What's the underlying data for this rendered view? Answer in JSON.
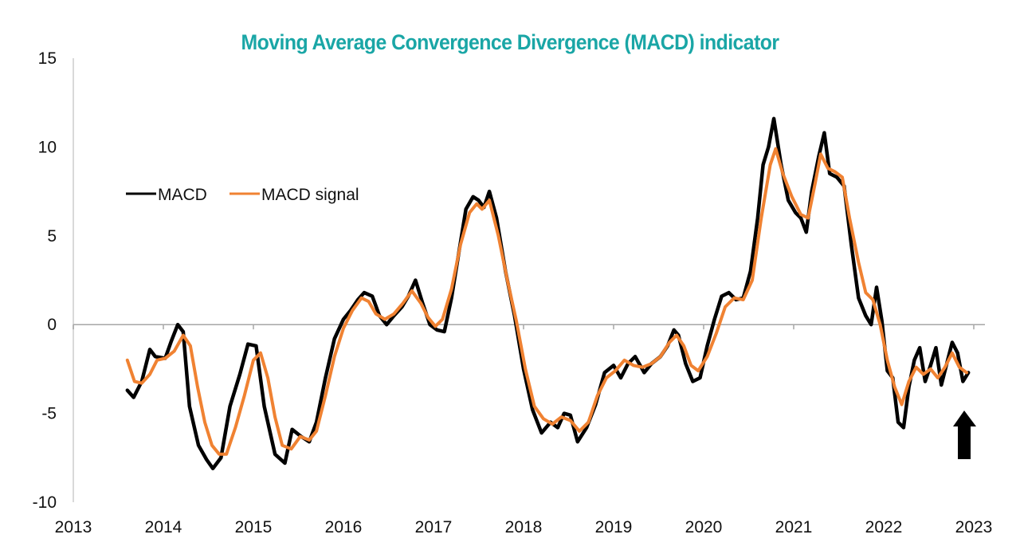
{
  "chart_data": {
    "type": "line",
    "title": "Moving Average Convergence Divergence (MACD) indicator",
    "xlabel": "",
    "ylabel": "",
    "xlim": [
      2013,
      2023
    ],
    "ylim": [
      -10,
      15
    ],
    "x_ticks": [
      "2013",
      "2014",
      "2015",
      "2016",
      "2017",
      "2018",
      "2019",
      "2020",
      "2021",
      "2022",
      "2023"
    ],
    "y_ticks": [
      "15",
      "10",
      "5",
      "0",
      "-5",
      "-10"
    ],
    "y_tick_values": [
      15,
      10,
      5,
      0,
      -5,
      -10
    ],
    "x_tick_values": [
      2013,
      2014,
      2015,
      2016,
      2017,
      2018,
      2019,
      2020,
      2021,
      2022,
      2023
    ],
    "grid": false,
    "legend": {
      "placement": "top-left",
      "entries": [
        "MACD",
        "MACD signal"
      ]
    },
    "annotation": {
      "type": "up-arrow",
      "x": 2022.92,
      "description": "arrow pointing up under latest values"
    },
    "series": [
      {
        "name": "MACD",
        "color": "#000000",
        "x": [
          2013.6,
          2013.67,
          2013.76,
          2013.85,
          2013.91,
          2014.02,
          2014.09,
          2014.16,
          2014.22,
          2014.29,
          2014.39,
          2014.48,
          2014.55,
          2014.64,
          2014.74,
          2014.85,
          2014.94,
          2015.03,
          2015.12,
          2015.24,
          2015.35,
          2015.43,
          2015.53,
          2015.62,
          2015.7,
          2015.8,
          2015.9,
          2016.0,
          2016.08,
          2016.16,
          2016.23,
          2016.32,
          2016.4,
          2016.48,
          2016.56,
          2016.65,
          2016.72,
          2016.8,
          2016.88,
          2016.96,
          2017.04,
          2017.12,
          2017.2,
          2017.28,
          2017.36,
          2017.44,
          2017.5,
          2017.56,
          2017.62,
          2017.7,
          2017.8,
          2017.9,
          2018.0,
          2018.1,
          2018.2,
          2018.3,
          2018.38,
          2018.45,
          2018.52,
          2018.6,
          2018.7,
          2018.8,
          2018.9,
          2019.0,
          2019.08,
          2019.16,
          2019.24,
          2019.34,
          2019.42,
          2019.52,
          2019.6,
          2019.67,
          2019.72,
          2019.8,
          2019.88,
          2019.96,
          2020.04,
          2020.12,
          2020.2,
          2020.28,
          2020.36,
          2020.44,
          2020.52,
          2020.6,
          2020.66,
          2020.72,
          2020.78,
          2020.86,
          2020.94,
          2021.02,
          2021.08,
          2021.14,
          2021.2,
          2021.28,
          2021.34,
          2021.4,
          2021.48,
          2021.56,
          2021.64,
          2021.72,
          2021.8,
          2021.86,
          2021.92,
          2021.98,
          2022.04,
          2022.1,
          2022.16,
          2022.22,
          2022.28,
          2022.34,
          2022.4,
          2022.46,
          2022.52,
          2022.58,
          2022.64,
          2022.7,
          2022.76,
          2022.82,
          2022.88,
          2022.94
        ],
        "values": [
          -3.7,
          -4.1,
          -3.2,
          -1.4,
          -1.8,
          -1.9,
          -0.9,
          0.0,
          -0.4,
          -4.6,
          -6.8,
          -7.6,
          -8.1,
          -7.5,
          -4.6,
          -2.8,
          -1.1,
          -1.2,
          -4.6,
          -7.3,
          -7.8,
          -5.9,
          -6.3,
          -6.6,
          -5.5,
          -3.0,
          -0.8,
          0.3,
          0.8,
          1.4,
          1.8,
          1.6,
          0.5,
          0.0,
          0.5,
          1.0,
          1.6,
          2.5,
          1.2,
          0.0,
          -0.3,
          -0.4,
          1.5,
          4.0,
          6.5,
          7.2,
          7.0,
          6.6,
          7.5,
          6.0,
          3.0,
          0.5,
          -2.5,
          -4.8,
          -6.1,
          -5.5,
          -5.8,
          -5.0,
          -5.1,
          -6.6,
          -5.8,
          -4.5,
          -2.7,
          -2.3,
          -3.0,
          -2.2,
          -1.8,
          -2.7,
          -2.2,
          -1.8,
          -1.2,
          -0.3,
          -0.6,
          -2.2,
          -3.2,
          -3.0,
          -1.2,
          0.3,
          1.6,
          1.8,
          1.4,
          1.5,
          3.0,
          6.0,
          9.0,
          10.0,
          11.6,
          9.0,
          7.0,
          6.3,
          6.0,
          5.2,
          7.5,
          9.5,
          10.8,
          8.5,
          8.3,
          7.8,
          4.5,
          1.5,
          0.5,
          0.0,
          2.1,
          0.2,
          -2.6,
          -3.0,
          -5.5,
          -5.8,
          -3.5,
          -2.0,
          -1.3,
          -3.2,
          -2.3,
          -1.3,
          -3.4,
          -2.2,
          -1.0,
          -1.6,
          -3.2,
          -2.7
        ],
        "note": "MACD line"
      },
      {
        "name": "MACD signal",
        "color": "#F08232",
        "x": [
          2013.6,
          2013.68,
          2013.76,
          2013.85,
          2013.93,
          2014.02,
          2014.12,
          2014.22,
          2014.3,
          2014.38,
          2014.46,
          2014.54,
          2014.62,
          2014.7,
          2014.8,
          2014.9,
          2015.0,
          2015.08,
          2015.16,
          2015.24,
          2015.32,
          2015.42,
          2015.52,
          2015.62,
          2015.7,
          2015.8,
          2015.9,
          2016.0,
          2016.1,
          2016.2,
          2016.28,
          2016.36,
          2016.46,
          2016.56,
          2016.66,
          2016.76,
          2016.86,
          2016.94,
          2017.02,
          2017.1,
          2017.2,
          2017.3,
          2017.4,
          2017.48,
          2017.54,
          2017.62,
          2017.72,
          2017.82,
          2017.92,
          2018.02,
          2018.12,
          2018.22,
          2018.32,
          2018.42,
          2018.52,
          2018.62,
          2018.72,
          2018.82,
          2018.92,
          2019.02,
          2019.12,
          2019.22,
          2019.32,
          2019.42,
          2019.52,
          2019.62,
          2019.7,
          2019.78,
          2019.86,
          2019.94,
          2020.04,
          2020.14,
          2020.24,
          2020.34,
          2020.44,
          2020.54,
          2020.64,
          2020.74,
          2020.8,
          2020.88,
          2020.98,
          2021.08,
          2021.16,
          2021.24,
          2021.3,
          2021.38,
          2021.46,
          2021.54,
          2021.62,
          2021.72,
          2021.8,
          2021.88,
          2021.96,
          2022.04,
          2022.12,
          2022.2,
          2022.28,
          2022.36,
          2022.44,
          2022.52,
          2022.6,
          2022.68,
          2022.76,
          2022.84,
          2022.92
        ],
        "values": [
          -2.0,
          -3.2,
          -3.3,
          -2.8,
          -2.0,
          -1.9,
          -1.5,
          -0.6,
          -1.2,
          -3.5,
          -5.5,
          -6.8,
          -7.3,
          -7.3,
          -5.8,
          -4.0,
          -2.0,
          -1.6,
          -3.0,
          -5.2,
          -6.8,
          -7.0,
          -6.3,
          -6.5,
          -6.0,
          -4.0,
          -1.8,
          -0.2,
          0.8,
          1.5,
          1.3,
          0.6,
          0.3,
          0.6,
          1.2,
          1.9,
          1.2,
          0.4,
          -0.1,
          0.3,
          2.0,
          4.5,
          6.3,
          6.8,
          6.5,
          7.0,
          5.0,
          2.5,
          0.2,
          -2.5,
          -4.6,
          -5.3,
          -5.6,
          -5.2,
          -5.4,
          -6.0,
          -5.5,
          -4.0,
          -3.0,
          -2.6,
          -2.0,
          -2.3,
          -2.4,
          -2.2,
          -1.8,
          -1.0,
          -0.6,
          -1.2,
          -2.3,
          -2.6,
          -1.8,
          -0.5,
          1.0,
          1.5,
          1.4,
          2.5,
          6.0,
          9.0,
          9.9,
          8.5,
          7.2,
          6.2,
          6.0,
          8.0,
          9.6,
          8.8,
          8.6,
          8.3,
          6.0,
          3.5,
          1.8,
          1.4,
          0.0,
          -2.0,
          -3.5,
          -4.5,
          -3.2,
          -2.4,
          -2.8,
          -2.5,
          -3.0,
          -2.4,
          -1.6,
          -2.4,
          -2.7
        ],
        "note": "signal line"
      }
    ]
  },
  "legend": {
    "macd_label": "MACD",
    "signal_label": "MACD signal"
  },
  "colors": {
    "title": "#1AA6A6",
    "macd": "#000000",
    "signal": "#F08232",
    "axis": "#D9D9D9",
    "zero_line": "#A6A6A6"
  }
}
